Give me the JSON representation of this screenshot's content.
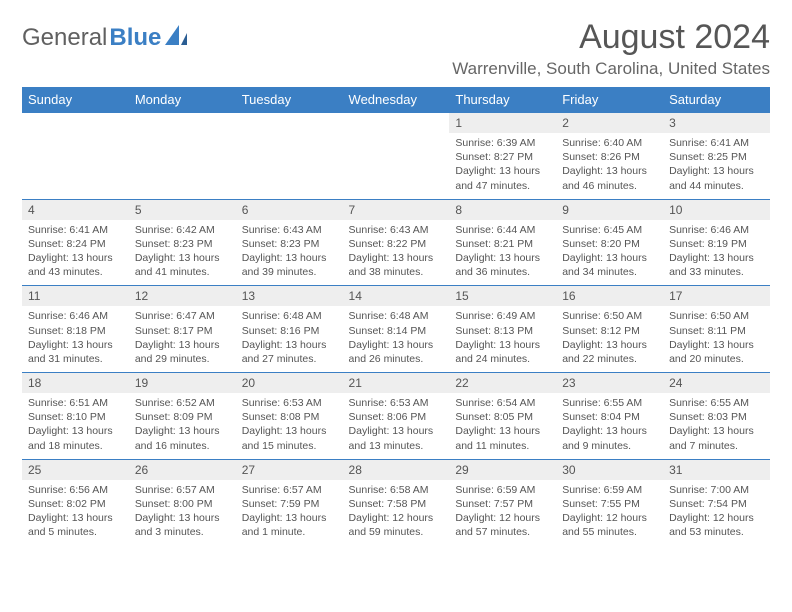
{
  "brand": {
    "part1": "General",
    "part2": "Blue"
  },
  "title": "August 2024",
  "location": "Warrenville, South Carolina, United States",
  "colors": {
    "header_bg": "#3b7fc4",
    "header_text": "#ffffff",
    "daynum_bg": "#eeeeee",
    "body_text": "#555555",
    "row_border": "#3b7fc4",
    "background": "#ffffff"
  },
  "daysOfWeek": [
    "Sunday",
    "Monday",
    "Tuesday",
    "Wednesday",
    "Thursday",
    "Friday",
    "Saturday"
  ],
  "weeks": [
    [
      null,
      null,
      null,
      null,
      {
        "day": "1",
        "sunrise": "Sunrise: 6:39 AM",
        "sunset": "Sunset: 8:27 PM",
        "daylight": "Daylight: 13 hours and 47 minutes."
      },
      {
        "day": "2",
        "sunrise": "Sunrise: 6:40 AM",
        "sunset": "Sunset: 8:26 PM",
        "daylight": "Daylight: 13 hours and 46 minutes."
      },
      {
        "day": "3",
        "sunrise": "Sunrise: 6:41 AM",
        "sunset": "Sunset: 8:25 PM",
        "daylight": "Daylight: 13 hours and 44 minutes."
      }
    ],
    [
      {
        "day": "4",
        "sunrise": "Sunrise: 6:41 AM",
        "sunset": "Sunset: 8:24 PM",
        "daylight": "Daylight: 13 hours and 43 minutes."
      },
      {
        "day": "5",
        "sunrise": "Sunrise: 6:42 AM",
        "sunset": "Sunset: 8:23 PM",
        "daylight": "Daylight: 13 hours and 41 minutes."
      },
      {
        "day": "6",
        "sunrise": "Sunrise: 6:43 AM",
        "sunset": "Sunset: 8:23 PM",
        "daylight": "Daylight: 13 hours and 39 minutes."
      },
      {
        "day": "7",
        "sunrise": "Sunrise: 6:43 AM",
        "sunset": "Sunset: 8:22 PM",
        "daylight": "Daylight: 13 hours and 38 minutes."
      },
      {
        "day": "8",
        "sunrise": "Sunrise: 6:44 AM",
        "sunset": "Sunset: 8:21 PM",
        "daylight": "Daylight: 13 hours and 36 minutes."
      },
      {
        "day": "9",
        "sunrise": "Sunrise: 6:45 AM",
        "sunset": "Sunset: 8:20 PM",
        "daylight": "Daylight: 13 hours and 34 minutes."
      },
      {
        "day": "10",
        "sunrise": "Sunrise: 6:46 AM",
        "sunset": "Sunset: 8:19 PM",
        "daylight": "Daylight: 13 hours and 33 minutes."
      }
    ],
    [
      {
        "day": "11",
        "sunrise": "Sunrise: 6:46 AM",
        "sunset": "Sunset: 8:18 PM",
        "daylight": "Daylight: 13 hours and 31 minutes."
      },
      {
        "day": "12",
        "sunrise": "Sunrise: 6:47 AM",
        "sunset": "Sunset: 8:17 PM",
        "daylight": "Daylight: 13 hours and 29 minutes."
      },
      {
        "day": "13",
        "sunrise": "Sunrise: 6:48 AM",
        "sunset": "Sunset: 8:16 PM",
        "daylight": "Daylight: 13 hours and 27 minutes."
      },
      {
        "day": "14",
        "sunrise": "Sunrise: 6:48 AM",
        "sunset": "Sunset: 8:14 PM",
        "daylight": "Daylight: 13 hours and 26 minutes."
      },
      {
        "day": "15",
        "sunrise": "Sunrise: 6:49 AM",
        "sunset": "Sunset: 8:13 PM",
        "daylight": "Daylight: 13 hours and 24 minutes."
      },
      {
        "day": "16",
        "sunrise": "Sunrise: 6:50 AM",
        "sunset": "Sunset: 8:12 PM",
        "daylight": "Daylight: 13 hours and 22 minutes."
      },
      {
        "day": "17",
        "sunrise": "Sunrise: 6:50 AM",
        "sunset": "Sunset: 8:11 PM",
        "daylight": "Daylight: 13 hours and 20 minutes."
      }
    ],
    [
      {
        "day": "18",
        "sunrise": "Sunrise: 6:51 AM",
        "sunset": "Sunset: 8:10 PM",
        "daylight": "Daylight: 13 hours and 18 minutes."
      },
      {
        "day": "19",
        "sunrise": "Sunrise: 6:52 AM",
        "sunset": "Sunset: 8:09 PM",
        "daylight": "Daylight: 13 hours and 16 minutes."
      },
      {
        "day": "20",
        "sunrise": "Sunrise: 6:53 AM",
        "sunset": "Sunset: 8:08 PM",
        "daylight": "Daylight: 13 hours and 15 minutes."
      },
      {
        "day": "21",
        "sunrise": "Sunrise: 6:53 AM",
        "sunset": "Sunset: 8:06 PM",
        "daylight": "Daylight: 13 hours and 13 minutes."
      },
      {
        "day": "22",
        "sunrise": "Sunrise: 6:54 AM",
        "sunset": "Sunset: 8:05 PM",
        "daylight": "Daylight: 13 hours and 11 minutes."
      },
      {
        "day": "23",
        "sunrise": "Sunrise: 6:55 AM",
        "sunset": "Sunset: 8:04 PM",
        "daylight": "Daylight: 13 hours and 9 minutes."
      },
      {
        "day": "24",
        "sunrise": "Sunrise: 6:55 AM",
        "sunset": "Sunset: 8:03 PM",
        "daylight": "Daylight: 13 hours and 7 minutes."
      }
    ],
    [
      {
        "day": "25",
        "sunrise": "Sunrise: 6:56 AM",
        "sunset": "Sunset: 8:02 PM",
        "daylight": "Daylight: 13 hours and 5 minutes."
      },
      {
        "day": "26",
        "sunrise": "Sunrise: 6:57 AM",
        "sunset": "Sunset: 8:00 PM",
        "daylight": "Daylight: 13 hours and 3 minutes."
      },
      {
        "day": "27",
        "sunrise": "Sunrise: 6:57 AM",
        "sunset": "Sunset: 7:59 PM",
        "daylight": "Daylight: 13 hours and 1 minute."
      },
      {
        "day": "28",
        "sunrise": "Sunrise: 6:58 AM",
        "sunset": "Sunset: 7:58 PM",
        "daylight": "Daylight: 12 hours and 59 minutes."
      },
      {
        "day": "29",
        "sunrise": "Sunrise: 6:59 AM",
        "sunset": "Sunset: 7:57 PM",
        "daylight": "Daylight: 12 hours and 57 minutes."
      },
      {
        "day": "30",
        "sunrise": "Sunrise: 6:59 AM",
        "sunset": "Sunset: 7:55 PM",
        "daylight": "Daylight: 12 hours and 55 minutes."
      },
      {
        "day": "31",
        "sunrise": "Sunrise: 7:00 AM",
        "sunset": "Sunset: 7:54 PM",
        "daylight": "Daylight: 12 hours and 53 minutes."
      }
    ]
  ]
}
